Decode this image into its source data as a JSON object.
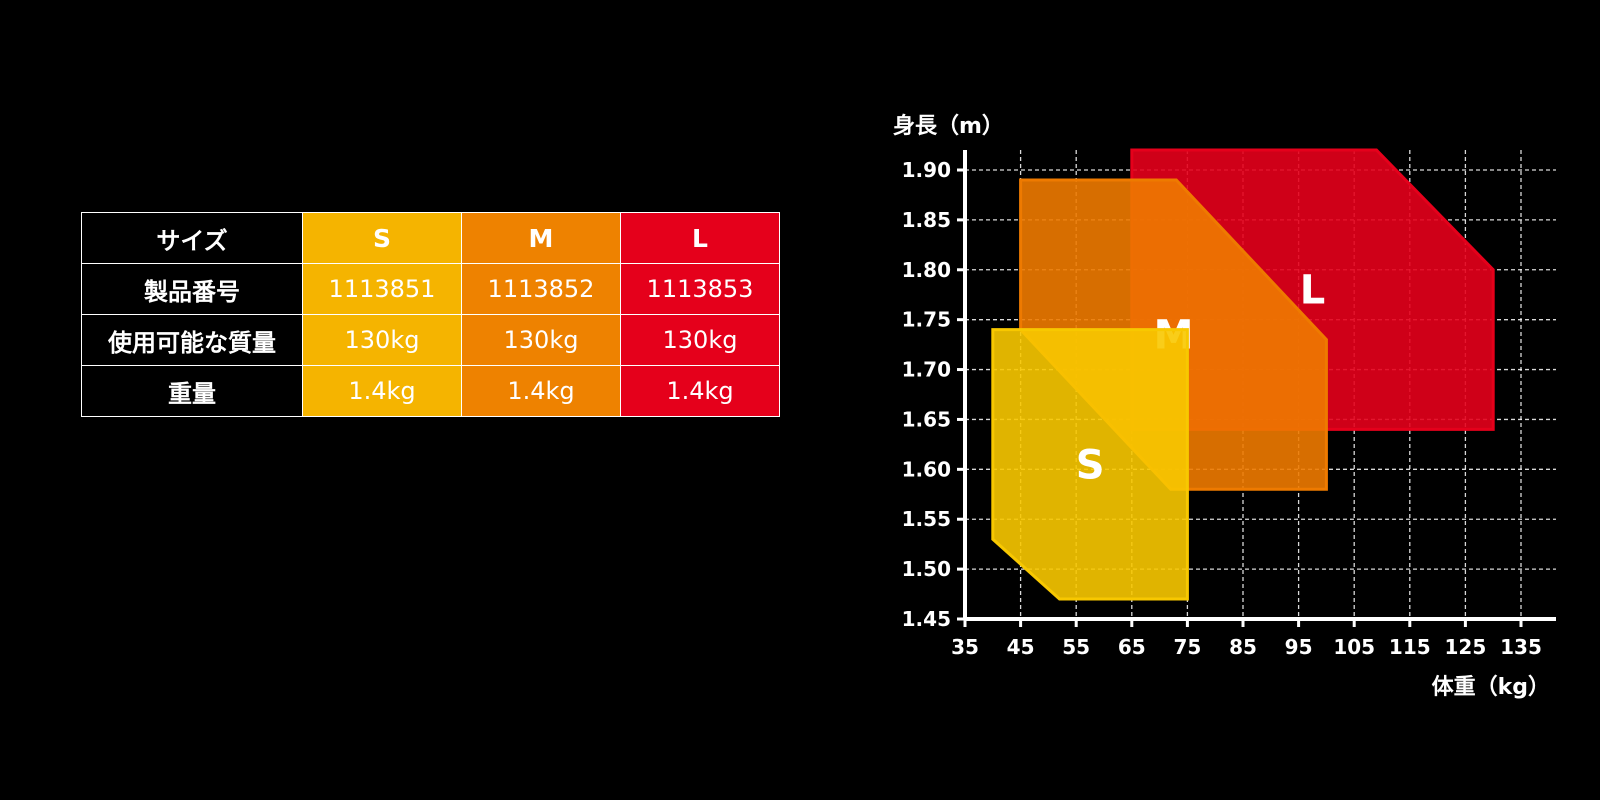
{
  "table": {
    "headers": [
      "サイズ",
      "S",
      "M",
      "L"
    ],
    "rows": [
      {
        "label": "製品番号",
        "values": [
          "1113851",
          "1113852",
          "1113853"
        ]
      },
      {
        "label": "使用可能な質量",
        "values": [
          "130kg",
          "130kg",
          "130kg"
        ]
      },
      {
        "label": "重量",
        "values": [
          "1.4kg",
          "1.4kg",
          "1.4kg"
        ]
      }
    ]
  },
  "chart_data": {
    "type": "area",
    "ylabel": "身長（m）",
    "xlabel": "体重（kg）",
    "xlim": [
      35,
      135
    ],
    "ylim": [
      1.45,
      1.9
    ],
    "xticks": [
      "35",
      "45",
      "55",
      "65",
      "75",
      "85",
      "95",
      "105",
      "115",
      "125",
      "135"
    ],
    "yticks": [
      "1.90",
      "1.85",
      "1.80",
      "1.75",
      "1.70",
      "1.65",
      "1.60",
      "1.55",
      "1.50",
      "1.45"
    ],
    "grid": true,
    "regions": [
      {
        "name": "L",
        "color": "#e5001b",
        "polygon": [
          [
            65,
            1.92
          ],
          [
            109,
            1.92
          ],
          [
            130,
            1.8
          ],
          [
            130,
            1.64
          ],
          [
            65,
            1.64
          ]
        ]
      },
      {
        "name": "M",
        "color": "#ee7a00",
        "polygon": [
          [
            45,
            1.89
          ],
          [
            73,
            1.89
          ],
          [
            100,
            1.73
          ],
          [
            100,
            1.58
          ],
          [
            72,
            1.58
          ],
          [
            45,
            1.74
          ]
        ]
      },
      {
        "name": "S",
        "color": "#f8c800",
        "polygon": [
          [
            40,
            1.74
          ],
          [
            75,
            1.74
          ],
          [
            75,
            1.47
          ],
          [
            52,
            1.47
          ],
          [
            40,
            1.53
          ]
        ]
      }
    ]
  }
}
